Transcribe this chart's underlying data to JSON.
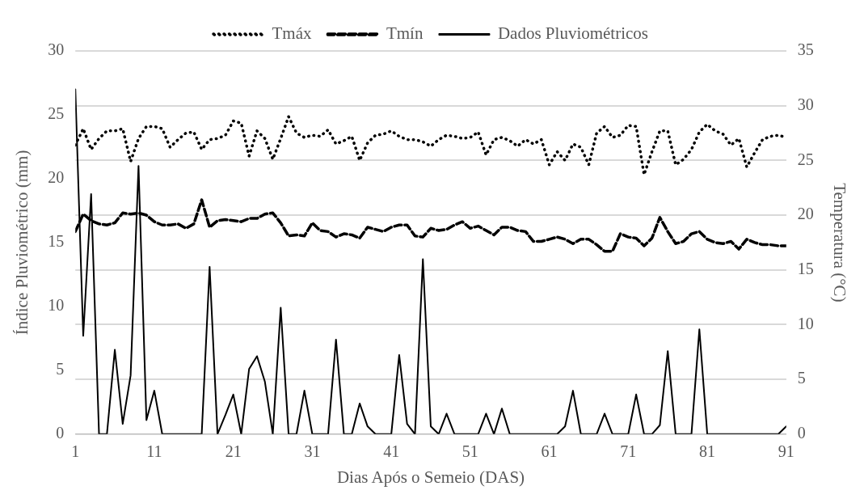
{
  "chart_data": {
    "type": "line",
    "xlabel": "Dias Após o Semeio (DAS)",
    "ylabel": "Índice Pluviométrico (mm)",
    "y2label": "Temperatura (°C)",
    "x": [
      1,
      2,
      3,
      4,
      5,
      6,
      7,
      8,
      9,
      10,
      11,
      12,
      13,
      14,
      15,
      16,
      17,
      18,
      19,
      20,
      21,
      22,
      23,
      24,
      25,
      26,
      27,
      28,
      29,
      30,
      31,
      32,
      33,
      34,
      35,
      36,
      37,
      38,
      39,
      40,
      41,
      42,
      43,
      44,
      45,
      46,
      47,
      48,
      49,
      50,
      51,
      52,
      53,
      54,
      55,
      56,
      57,
      58,
      59,
      60,
      61,
      62,
      63,
      64,
      65,
      66,
      67,
      68,
      69,
      70,
      71,
      72,
      73,
      74,
      75,
      76,
      77,
      78,
      79,
      80,
      81,
      82,
      83,
      84,
      85,
      86,
      87,
      88,
      89,
      90,
      91
    ],
    "xlim": [
      1,
      91
    ],
    "xticks": [
      1,
      11,
      21,
      31,
      41,
      51,
      61,
      71,
      81,
      91
    ],
    "ylim": [
      0,
      30
    ],
    "yticks": [
      0,
      5,
      10,
      15,
      20,
      25,
      30
    ],
    "y2lim": [
      0,
      35
    ],
    "y2ticks": [
      0,
      5,
      10,
      15,
      20,
      25,
      30,
      35
    ],
    "grid": "y2",
    "legend": "top",
    "marker": "none",
    "series": [
      {
        "name": "Tmáx",
        "color": "#000000",
        "axis": "y2",
        "line_style": "dotted",
        "values": [
          26.4,
          27.9,
          26.0,
          27.0,
          27.7,
          27.7,
          27.9,
          24.9,
          27.0,
          28.1,
          28.1,
          27.9,
          26.2,
          26.9,
          27.5,
          27.6,
          26.0,
          26.9,
          27.0,
          27.3,
          28.6,
          28.4,
          25.4,
          27.7,
          27.0,
          25.1,
          27.0,
          29.0,
          27.5,
          27.1,
          27.3,
          27.2,
          27.8,
          26.5,
          26.8,
          27.2,
          25.0,
          26.6,
          27.3,
          27.4,
          27.7,
          27.2,
          26.9,
          26.9,
          26.7,
          26.3,
          26.9,
          27.3,
          27.2,
          27.0,
          27.1,
          27.6,
          25.5,
          26.9,
          27.1,
          26.8,
          26.3,
          26.9,
          26.5,
          26.9,
          24.6,
          25.8,
          25.0,
          26.5,
          26.2,
          24.6,
          27.5,
          28.1,
          27.1,
          27.3,
          28.2,
          28.1,
          23.7,
          25.8,
          27.7,
          27.7,
          24.6,
          25.1,
          26.0,
          27.6,
          28.3,
          27.7,
          27.4,
          26.4,
          27.0,
          24.4,
          25.7,
          26.9,
          27.2,
          27.3,
          27.1
        ]
      },
      {
        "name": "Tmín",
        "color": "#000000",
        "axis": "y2",
        "line_style": "dashed",
        "values": [
          18.5,
          20.1,
          19.5,
          19.2,
          19.1,
          19.3,
          20.2,
          20.1,
          20.2,
          20.0,
          19.4,
          19.1,
          19.1,
          19.2,
          18.8,
          19.2,
          21.4,
          18.9,
          19.5,
          19.6,
          19.5,
          19.4,
          19.7,
          19.7,
          20.1,
          20.2,
          19.3,
          18.1,
          18.2,
          18.1,
          19.3,
          18.6,
          18.5,
          18.0,
          18.3,
          18.2,
          17.9,
          18.9,
          18.7,
          18.5,
          18.9,
          19.1,
          19.1,
          18.1,
          18.0,
          18.8,
          18.6,
          18.7,
          19.1,
          19.4,
          18.8,
          19.0,
          18.6,
          18.2,
          18.9,
          18.9,
          18.6,
          18.5,
          17.6,
          17.6,
          17.8,
          18.0,
          17.8,
          17.4,
          17.8,
          17.8,
          17.3,
          16.7,
          16.7,
          18.3,
          18.0,
          17.9,
          17.2,
          17.9,
          19.8,
          18.5,
          17.4,
          17.6,
          18.3,
          18.5,
          17.8,
          17.5,
          17.4,
          17.6,
          16.9,
          17.8,
          17.5,
          17.3,
          17.3,
          17.2,
          17.2
        ]
      },
      {
        "name": "Dados Pluviométricos",
        "color": "#000000",
        "axis": "y",
        "line_style": "solid",
        "values": [
          27.0,
          7.7,
          18.8,
          0,
          0,
          6.6,
          0.8,
          4.6,
          21.0,
          1.1,
          3.4,
          0,
          0,
          0,
          0,
          0,
          0,
          13.1,
          0,
          1.5,
          3.1,
          0,
          5.1,
          6.1,
          4.1,
          0,
          9.9,
          0,
          0,
          3.4,
          0,
          0,
          0,
          7.4,
          0,
          0,
          2.4,
          0.6,
          0,
          0,
          0,
          6.2,
          0.8,
          0,
          13.7,
          0.6,
          0,
          1.6,
          0,
          0,
          0,
          0,
          1.6,
          0,
          2.0,
          0,
          0,
          0,
          0,
          0,
          0,
          0,
          0.6,
          3.4,
          0,
          0,
          0,
          1.6,
          0,
          0,
          0,
          3.1,
          0,
          0,
          0.7,
          6.5,
          0,
          0,
          0,
          8.2,
          0,
          0,
          0,
          0,
          0,
          0,
          0,
          0,
          0,
          0,
          0.6
        ]
      }
    ]
  }
}
